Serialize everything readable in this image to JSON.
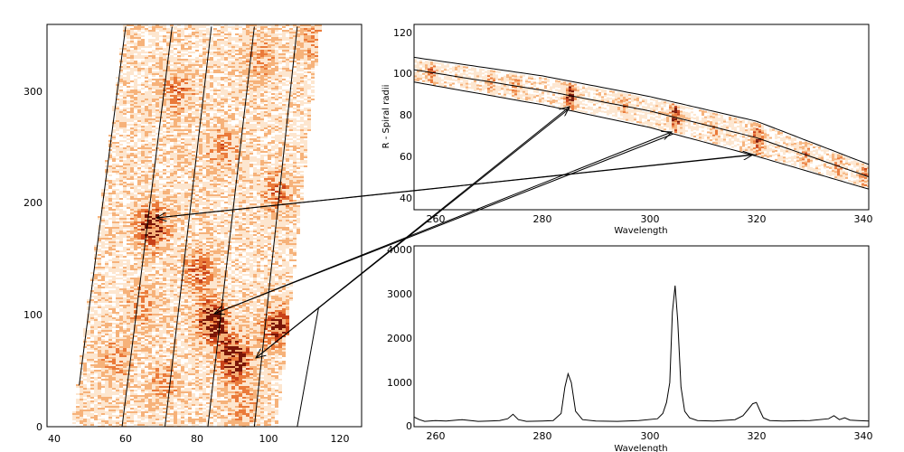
{
  "chart_data": [
    {
      "panel": "left",
      "type": "heatmap",
      "xlim": [
        36,
        124
      ],
      "ylim": [
        0,
        360
      ],
      "x_ticks": [
        "40",
        "60",
        "80",
        "100",
        "120"
      ],
      "y_ticks": [
        "0",
        "100",
        "200",
        "300"
      ],
      "colormap": [
        "#ffffff",
        "#fde6cf",
        "#f6b27a",
        "#ea7a3a",
        "#c8421a",
        "#7a1608"
      ],
      "blobs": [
        {
          "x": 65,
          "y": 180,
          "intensity": 0.85
        },
        {
          "x": 82,
          "y": 95,
          "intensity": 1.0
        },
        {
          "x": 88,
          "y": 62,
          "intensity": 1.0
        },
        {
          "x": 100,
          "y": 90,
          "intensity": 0.7
        },
        {
          "x": 100,
          "y": 210,
          "intensity": 0.45
        },
        {
          "x": 72,
          "y": 300,
          "intensity": 0.4
        },
        {
          "x": 85,
          "y": 250,
          "intensity": 0.35
        },
        {
          "x": 78,
          "y": 140,
          "intensity": 0.45
        },
        {
          "x": 62,
          "y": 110,
          "intensity": 0.35
        },
        {
          "x": 95,
          "y": 330,
          "intensity": 0.3
        },
        {
          "x": 55,
          "y": 60,
          "intensity": 0.3
        },
        {
          "x": 68,
          "y": 40,
          "intensity": 0.3
        },
        {
          "x": 90,
          "y": 20,
          "intensity": 0.3
        },
        {
          "x": 110,
          "y": 345,
          "intensity": 0.25
        }
      ],
      "spiral_lines": [
        {
          "x0": 45,
          "y0": 37,
          "x1": 58,
          "y1": 358
        },
        {
          "x0": 57,
          "y0": 0,
          "x1": 71,
          "y1": 358
        },
        {
          "x0": 69,
          "y0": 0,
          "x1": 82,
          "y1": 358
        },
        {
          "x0": 81,
          "y0": 0,
          "x1": 94,
          "y1": 358
        },
        {
          "x0": 94,
          "y0": 0,
          "x1": 106,
          "y1": 358
        },
        {
          "x0": 106,
          "y0": 0,
          "x1": 112,
          "y1": 107
        }
      ]
    },
    {
      "panel": "top-right",
      "type": "heatmap",
      "xlabel": "Wavelength",
      "ylabel": "R - Spiral radii",
      "xlim": [
        256,
        341
      ],
      "ylim": [
        35,
        125
      ],
      "x_ticks": [
        "260",
        "280",
        "300",
        "320",
        "340"
      ],
      "y_ticks": [
        "40",
        "60",
        "80",
        "100",
        "120"
      ],
      "band_curves": {
        "upper": {
          "x": [
            256,
            280,
            300,
            320,
            341
          ],
          "y": [
            109,
            100,
            90,
            78,
            57
          ]
        },
        "center": {
          "x": [
            256,
            280,
            300,
            320,
            341
          ],
          "y": [
            103,
            93,
            83,
            70,
            51
          ]
        },
        "lower": {
          "x": [
            256,
            280,
            300,
            320,
            341
          ],
          "y": [
            97,
            86,
            75,
            61,
            45
          ]
        }
      },
      "features": [
        {
          "x": 259,
          "intensity": 0.5
        },
        {
          "x": 270,
          "intensity": 0.3
        },
        {
          "x": 275,
          "intensity": 0.35
        },
        {
          "x": 285,
          "intensity": 0.9
        },
        {
          "x": 295,
          "intensity": 0.35
        },
        {
          "x": 304.5,
          "intensity": 1.0
        },
        {
          "x": 312,
          "intensity": 0.3
        },
        {
          "x": 320,
          "intensity": 0.8
        },
        {
          "x": 329,
          "intensity": 0.35
        },
        {
          "x": 335,
          "intensity": 0.4
        },
        {
          "x": 340,
          "intensity": 0.5
        }
      ]
    },
    {
      "panel": "bottom-right",
      "type": "line",
      "xlabel": "Wavelength",
      "xlim": [
        256,
        341
      ],
      "ylim": [
        -100,
        4000
      ],
      "x_ticks": [
        "260",
        "280",
        "300",
        "320",
        "340"
      ],
      "y_ticks": [
        "0",
        "1000",
        "2000",
        "3000",
        "4000"
      ],
      "series": [
        {
          "x": [
            256,
            257,
            258,
            260,
            262,
            265,
            268,
            270,
            272,
            273.5,
            274.5,
            275.5,
            277,
            280,
            282,
            283.5,
            284.2,
            284.8,
            285.4,
            286.2,
            287.5,
            290,
            294,
            298,
            301.5,
            302.5,
            303.2,
            303.8,
            304.3,
            304.8,
            305.3,
            305.9,
            306.6,
            307.5,
            309,
            312,
            316,
            317.5,
            318.5,
            319.3,
            320,
            320.6,
            321.3,
            322.5,
            325,
            330,
            333.5,
            334.5,
            335.5,
            336.5,
            337.5,
            339,
            341
          ],
          "y": [
            120,
            60,
            20,
            40,
            30,
            60,
            20,
            30,
            40,
            80,
            180,
            60,
            20,
            30,
            40,
            200,
            800,
            1100,
            900,
            250,
            60,
            30,
            20,
            40,
            80,
            200,
            450,
            900,
            2500,
            3100,
            2300,
            800,
            250,
            100,
            40,
            30,
            60,
            150,
            300,
            420,
            450,
            280,
            100,
            40,
            30,
            40,
            80,
            150,
            60,
            100,
            50,
            40,
            30
          ]
        }
      ]
    }
  ]
}
